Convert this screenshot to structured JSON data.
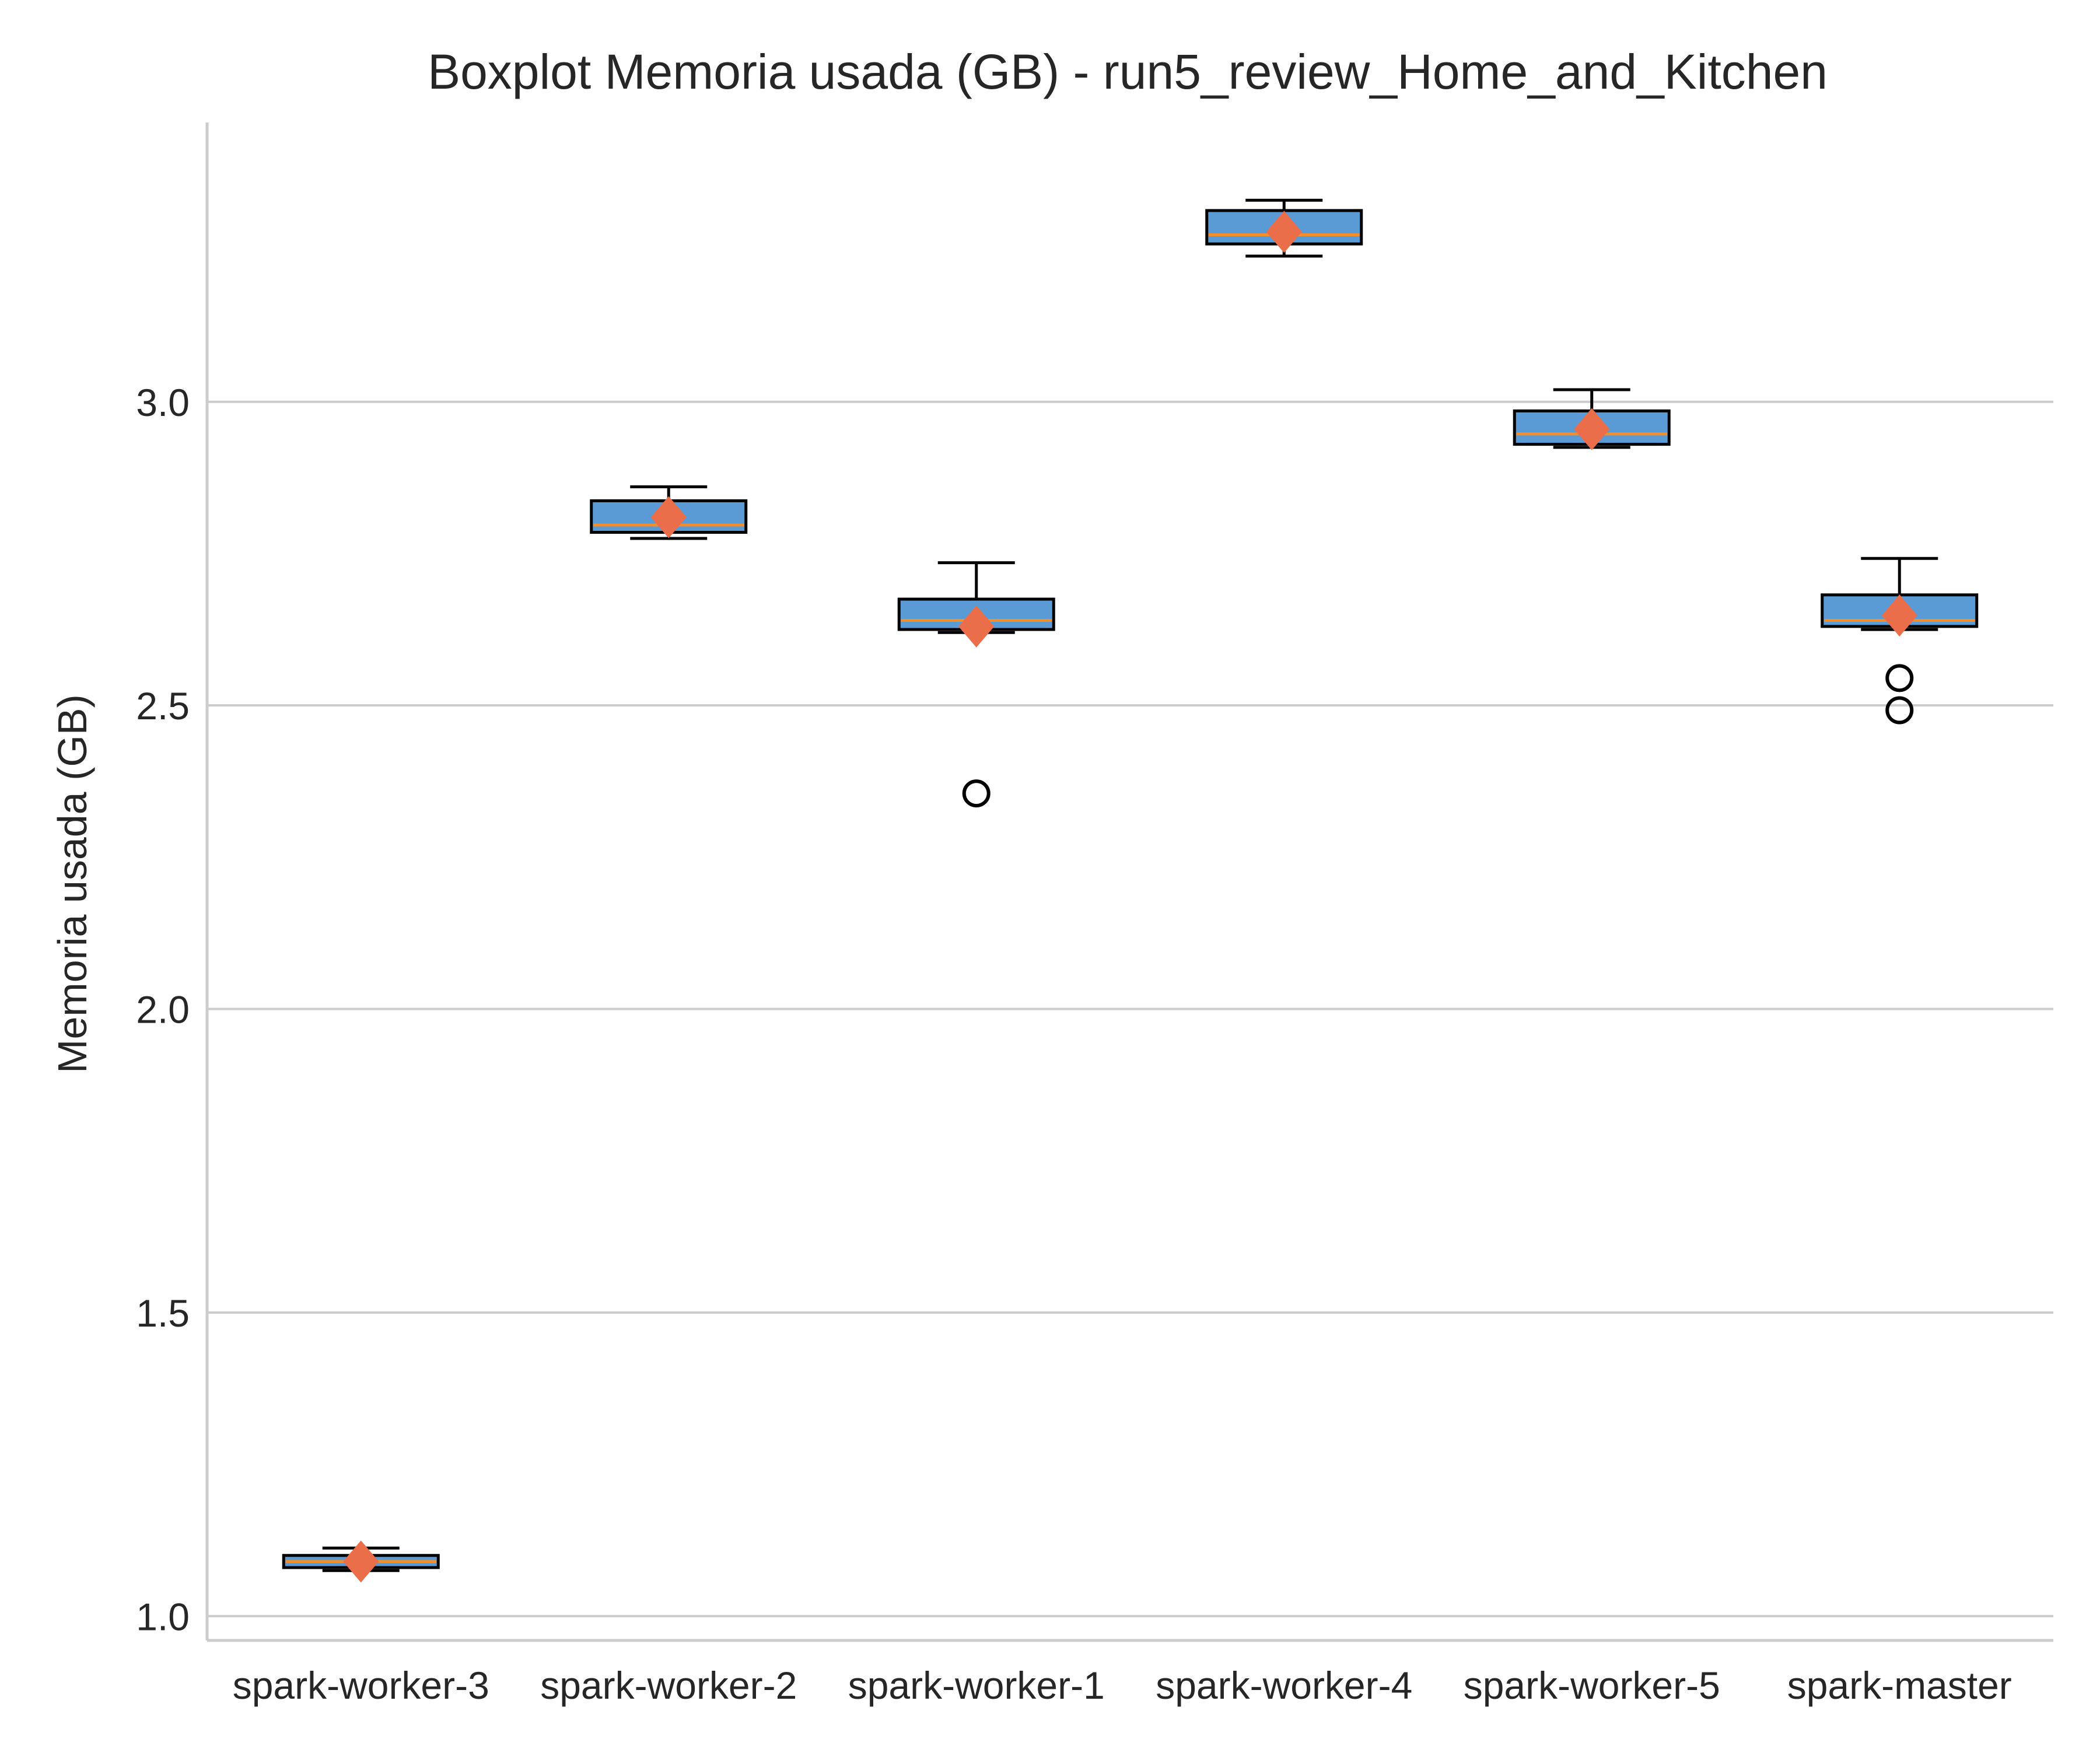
{
  "chart_data": {
    "type": "box",
    "title": "Boxplot Memoria usada (GB) - run5_review_Home_and_Kitchen",
    "xlabel": "",
    "ylabel": "Memoria usada (GB)",
    "ylim": [
      0.96,
      3.46
    ],
    "yticks": [
      "1.0",
      "1.5",
      "2.0",
      "2.5",
      "3.0"
    ],
    "ytick_values": [
      1.0,
      1.5,
      2.0,
      2.5,
      3.0
    ],
    "grid": "horizontal",
    "legend": "none",
    "colors": {
      "box_fill": "#5b9bd5",
      "box_edge": "#000000",
      "median": "#f28e2b",
      "mean_marker": "#ea6e4a",
      "grid": "#cccccc",
      "spine": "#cccccc"
    },
    "mean_marker_shape": "diamond",
    "boxes": [
      {
        "category": "spark-worker-3",
        "whislo": 1.075,
        "q1": 1.08,
        "median": 1.09,
        "q3": 1.1,
        "whishi": 1.112,
        "mean": 1.09,
        "fliers": []
      },
      {
        "category": "spark-worker-2",
        "whislo": 2.775,
        "q1": 2.785,
        "median": 2.797,
        "q3": 2.837,
        "whishi": 2.86,
        "mean": 2.81,
        "fliers": []
      },
      {
        "category": "spark-worker-1",
        "whislo": 2.62,
        "q1": 2.625,
        "median": 2.64,
        "q3": 2.675,
        "whishi": 2.735,
        "mean": 2.63,
        "fliers": [
          2.355
        ]
      },
      {
        "category": "spark-worker-4",
        "whislo": 3.24,
        "q1": 3.26,
        "median": 3.275,
        "q3": 3.315,
        "whishi": 3.332,
        "mean": 3.28,
        "fliers": []
      },
      {
        "category": "spark-worker-5",
        "whislo": 2.925,
        "q1": 2.93,
        "median": 2.947,
        "q3": 2.985,
        "whishi": 3.02,
        "mean": 2.955,
        "fliers": []
      },
      {
        "category": "spark-master",
        "whislo": 2.625,
        "q1": 2.63,
        "median": 2.64,
        "q3": 2.682,
        "whishi": 2.742,
        "mean": 2.648,
        "fliers": [
          2.545,
          2.492
        ]
      }
    ]
  }
}
